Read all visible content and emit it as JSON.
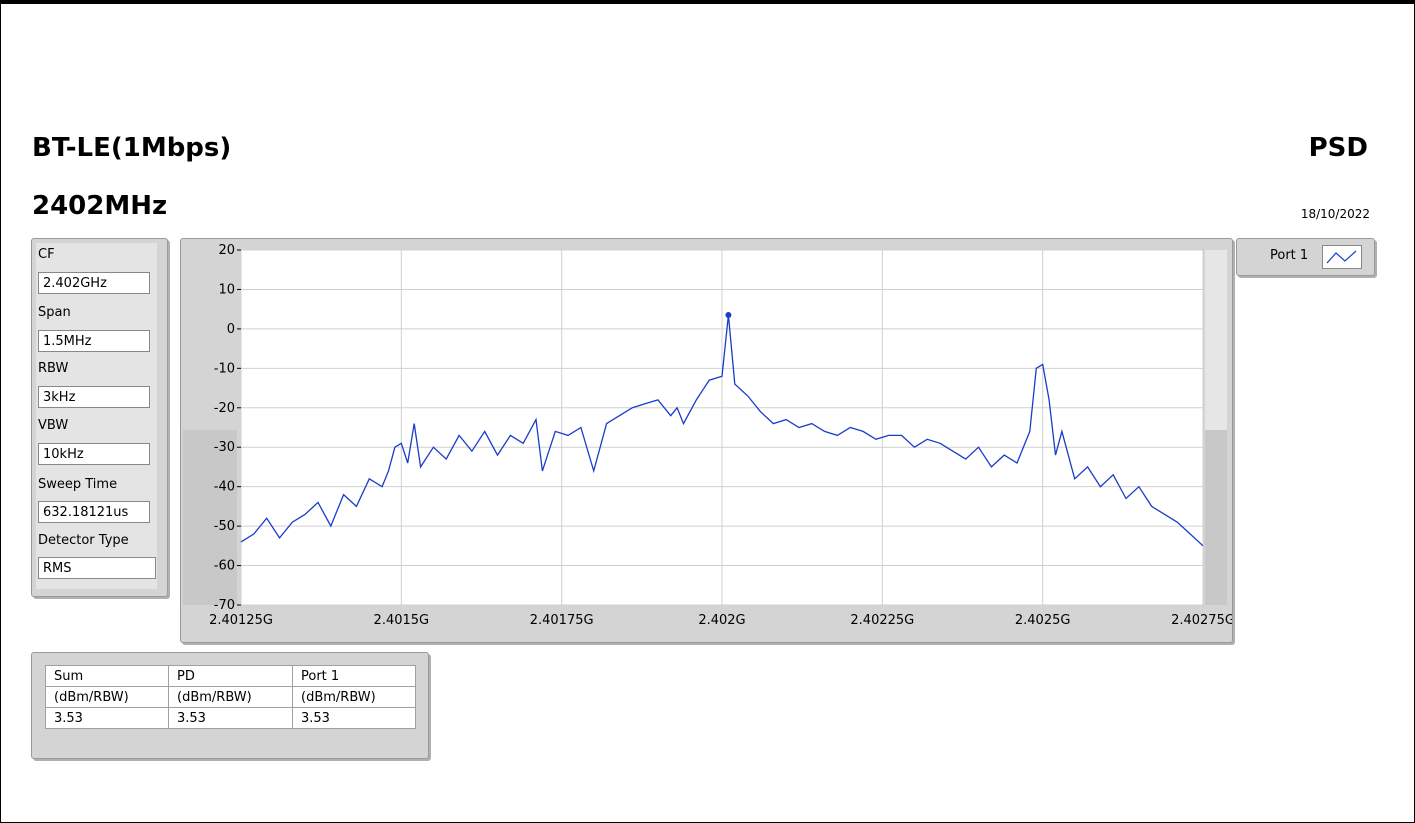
{
  "header": {
    "title": "BT-LE(1Mbps)",
    "frequency": "2402MHz",
    "measurement": "PSD",
    "date": "18/10/2022"
  },
  "settings": [
    {
      "label": "CF",
      "value": "2.402GHz"
    },
    {
      "label": "Span",
      "value": "1.5MHz"
    },
    {
      "label": "RBW",
      "value": "3kHz"
    },
    {
      "label": "VBW",
      "value": "10kHz"
    },
    {
      "label": "Sweep Time",
      "value": "632.18121us"
    },
    {
      "label": "Detector Type",
      "value": "RMS"
    }
  ],
  "legend": {
    "label": "Port 1"
  },
  "results_table": {
    "headers": [
      "Sum",
      "PD",
      "Port 1"
    ],
    "units": [
      "(dBm/RBW)",
      "(dBm/RBW)",
      "(dBm/RBW)"
    ],
    "values": [
      "3.53",
      "3.53",
      "3.53"
    ]
  },
  "colors": {
    "trace": "#1a3cc8",
    "grid": "#d0d0d0",
    "panel": "#d4d4d4"
  },
  "chart_data": {
    "type": "line",
    "xlim": [
      2.40125,
      2.40275
    ],
    "ylim": [
      -70,
      20
    ],
    "x_ticks": [
      2.40125,
      2.4015,
      2.40175,
      2.402,
      2.40225,
      2.4025,
      2.40275
    ],
    "x_tick_labels": [
      "2.40125G",
      "2.4015G",
      "2.40175G",
      "2.402G",
      "2.40225G",
      "2.4025G",
      "2.40275G"
    ],
    "y_ticks": [
      20,
      10,
      0,
      -10,
      -20,
      -30,
      -40,
      -50,
      -60,
      -70
    ],
    "y_tick_labels": [
      "20",
      "10",
      "0",
      "-10",
      "-20",
      "-30",
      "-40",
      "-50",
      "-60",
      "-70"
    ],
    "grid": true,
    "marker": {
      "x": 2.40201,
      "y": 3.53
    },
    "series": [
      {
        "x": [
          2.40125,
          2.40127,
          2.40129,
          2.40131,
          2.40133,
          2.40135,
          2.40137,
          2.40139,
          2.40141,
          2.40143,
          2.40145,
          2.40147,
          2.40148,
          2.40149,
          2.4015,
          2.40151,
          2.40152,
          2.40153,
          2.40155,
          2.40157,
          2.40159,
          2.40161,
          2.40163,
          2.40165,
          2.40167,
          2.40169,
          2.40171,
          2.40172,
          2.40174,
          2.40176,
          2.40178,
          2.4018,
          2.40182,
          2.40184,
          2.40186,
          2.40188,
          2.4019,
          2.40192,
          2.40193,
          2.40194,
          2.40196,
          2.40198,
          2.402,
          2.40201,
          2.40202,
          2.40204,
          2.40206,
          2.40208,
          2.4021,
          2.40212,
          2.40214,
          2.40216,
          2.40218,
          2.4022,
          2.40222,
          2.40224,
          2.40226,
          2.40228,
          2.4023,
          2.40232,
          2.40234,
          2.40236,
          2.40238,
          2.4024,
          2.40242,
          2.40244,
          2.40246,
          2.40248,
          2.40249,
          2.4025,
          2.40251,
          2.40252,
          2.40253,
          2.40255,
          2.40257,
          2.40259,
          2.40261,
          2.40263,
          2.40265,
          2.40267,
          2.40269,
          2.40271,
          2.40273,
          2.40275
        ],
        "y": [
          -54,
          -52,
          -48,
          -53,
          -49,
          -47,
          -44,
          -50,
          -42,
          -45,
          -38,
          -40,
          -36,
          -30,
          -29,
          -34,
          -24,
          -35,
          -30,
          -33,
          -27,
          -31,
          -26,
          -32,
          -27,
          -29,
          -23,
          -36,
          -26,
          -27,
          -25,
          -36,
          -24,
          -22,
          -20,
          -19,
          -18,
          -22,
          -20,
          -24,
          -18,
          -13,
          -12,
          3.5,
          -14,
          -17,
          -21,
          -24,
          -23,
          -25,
          -24,
          -26,
          -27,
          -25,
          -26,
          -28,
          -27,
          -27,
          -30,
          -28,
          -29,
          -31,
          -33,
          -30,
          -35,
          -32,
          -34,
          -26,
          -10,
          -9,
          -18,
          -32,
          -26,
          -38,
          -35,
          -40,
          -37,
          -43,
          -40,
          -45,
          -47,
          -49,
          -52,
          -55
        ]
      }
    ]
  }
}
